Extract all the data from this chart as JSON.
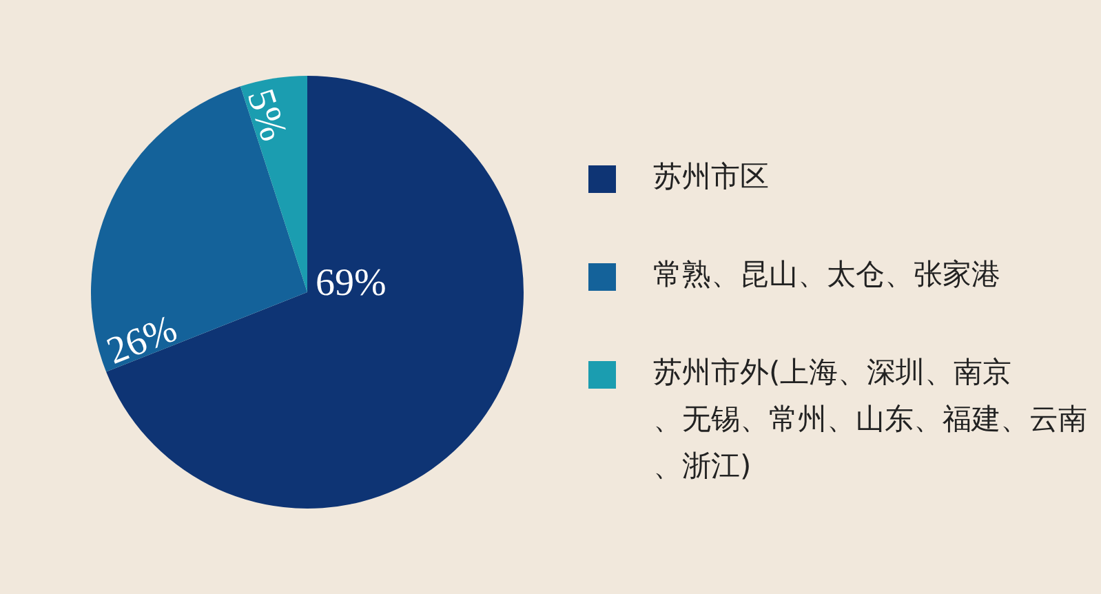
{
  "chart_data": {
    "type": "pie",
    "categories": [
      "苏州市区",
      "常熟、昆山、太仓、张家港",
      "苏州市外(上海、深圳、南京、无锡、常州、山东、福建、云南、浙江)"
    ],
    "values": [
      69,
      26,
      5
    ],
    "colors": [
      "#0e3474",
      "#14629a",
      "#1b9db0"
    ],
    "value_labels": [
      "69%",
      "26%",
      "5%"
    ],
    "legend": "right"
  }
}
